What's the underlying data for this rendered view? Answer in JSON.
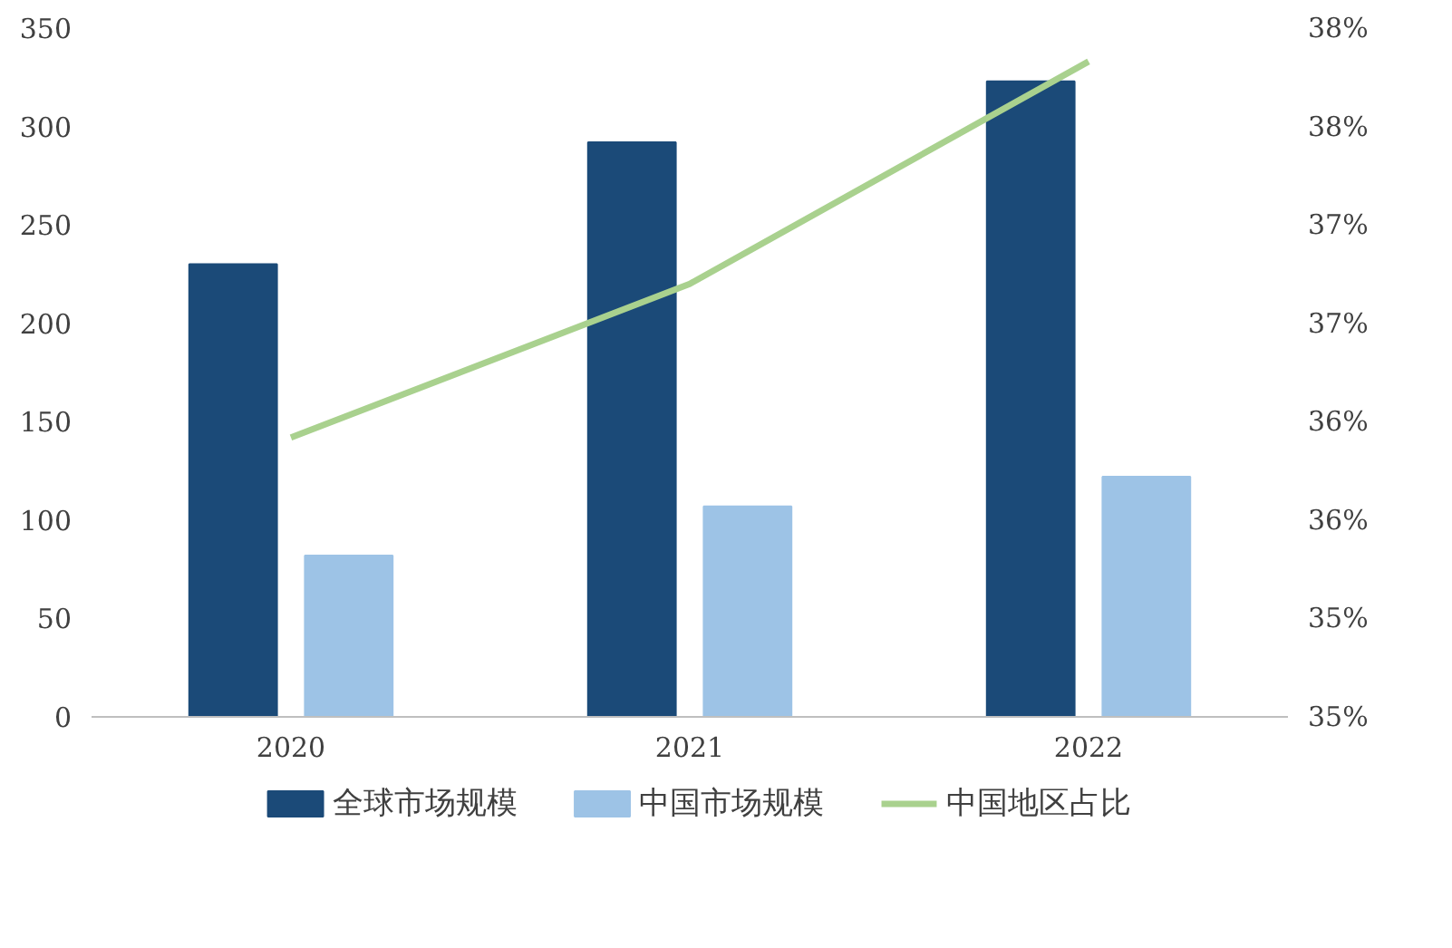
{
  "chart_data": {
    "type": "bar",
    "categories": [
      "2020",
      "2021",
      "2022"
    ],
    "series": [
      {
        "name": "全球市场规模",
        "color": "#1b4a78",
        "values": [
          230,
          292,
          323
        ]
      },
      {
        "name": "中国市场规模",
        "color": "#9dc3e6",
        "values": [
          82,
          107,
          122
        ]
      },
      {
        "name": "中国地区占比",
        "color": "#a9d18e",
        "type": "line",
        "axis": "y2",
        "values": [
          36.42,
          37.2,
          38.33
        ]
      }
    ],
    "ylim": [
      0,
      350
    ],
    "yticks": [
      0,
      50,
      100,
      150,
      200,
      250,
      300,
      350
    ],
    "y2lim": [
      35,
      38.5
    ],
    "y2ticks": [
      {
        "value": 35,
        "label": "35%"
      },
      {
        "value": 35.5,
        "label": "35%"
      },
      {
        "value": 36,
        "label": "36%"
      },
      {
        "value": 36.5,
        "label": "36%"
      },
      {
        "value": 37,
        "label": "37%"
      },
      {
        "value": 37.5,
        "label": "37%"
      },
      {
        "value": 38,
        "label": "38%"
      },
      {
        "value": 38.5,
        "label": "38%"
      }
    ],
    "grid": false,
    "legend": "bottom"
  }
}
